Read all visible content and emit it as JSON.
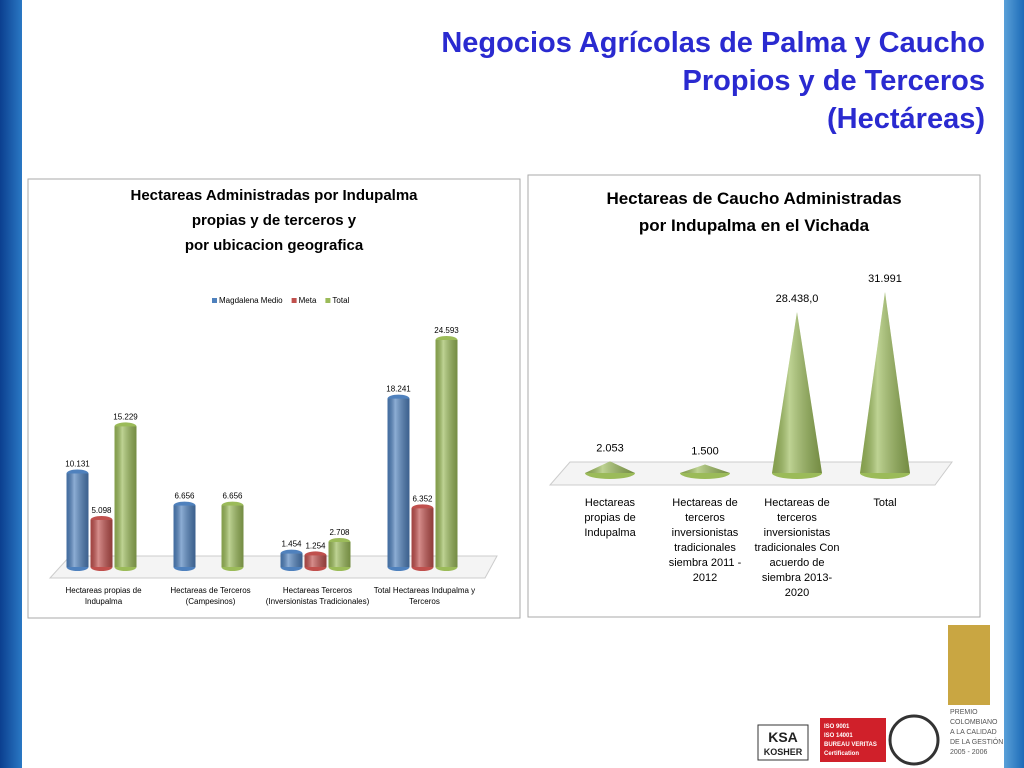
{
  "slide": {
    "title": [
      "Negocios Agrícolas de Palma y Caucho",
      "Propios y de Terceros",
      "(Hectáreas)"
    ]
  },
  "chart_data": [
    {
      "type": "bar",
      "title": [
        "Hectareas Administradas por Indupalma",
        "propias y de terceros y",
        "por ubicacion geografica"
      ],
      "categories": [
        "Hectareas propias de Indupalma",
        "Hectareas de Terceros (Campesinos)",
        "Hectareas Terceros (Inversionistas Tradicionales)",
        "Total Hectareas Indupalma y Terceros"
      ],
      "series": [
        {
          "name": "Magdalena Medio",
          "color": "#4f81bd",
          "values": [
            10131,
            6656,
            1454,
            18241
          ],
          "value_labels": [
            "10.131",
            "6.656",
            "1.454",
            "18.241"
          ]
        },
        {
          "name": "Meta",
          "color": "#c0504d",
          "values": [
            5098,
            null,
            1254,
            6352
          ],
          "value_labels": [
            "5.098",
            null,
            "1.254",
            "6.352"
          ]
        },
        {
          "name": "Total",
          "color": "#9bbb59",
          "values": [
            15229,
            6656,
            2708,
            24593
          ],
          "value_labels": [
            "15.229",
            "6.656",
            "2.708",
            "24.593"
          ]
        }
      ],
      "legend": "top"
    },
    {
      "type": "cone",
      "title": [
        "Hectareas de Caucho Administradas",
        "por Indupalma en el Vichada"
      ],
      "categories": [
        "Hectareas propias de Indupalma",
        "Hectareas de terceros inversionistas tradicionales siembra 2011 - 2012",
        "Hectareas de terceros inversionistas tradicionales Con acuerdo de siembra 2013-2020",
        "Total"
      ],
      "values": [
        2053,
        1500,
        28438.0,
        31991
      ],
      "value_labels": [
        "2.053",
        "1.500",
        "28.438,0",
        "31.991"
      ],
      "color": "#9bbb59"
    }
  ],
  "logos": {
    "ksa": [
      "KSA",
      "KOSHER"
    ],
    "bureau_veritas": [
      "ISO 9001",
      "ISO 14001",
      "BUREAU VERITAS",
      "Certification"
    ],
    "premio": [
      "PREMIO",
      "COLOMBIANO",
      "A LA CALIDAD",
      "DE LA GESTIÓN",
      "2005 - 2006"
    ]
  }
}
